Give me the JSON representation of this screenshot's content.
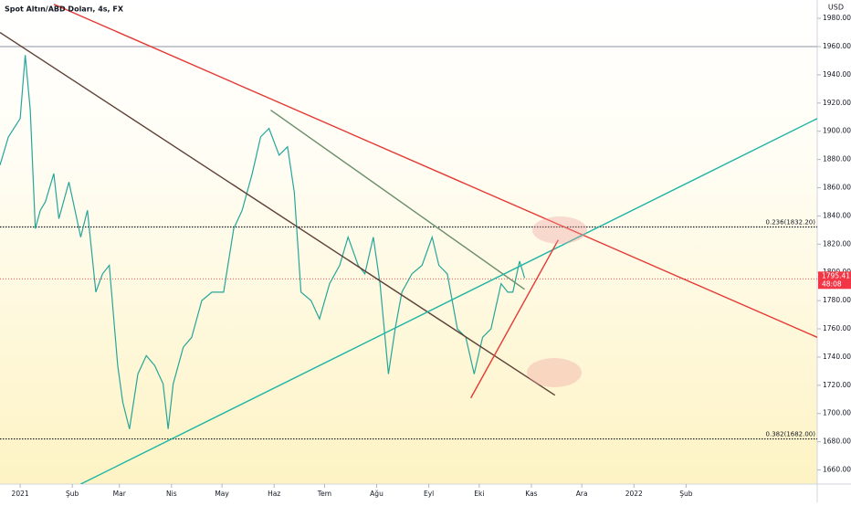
{
  "chart_data": {
    "type": "line",
    "title": "Spot Altın/ABD Doları, 4s, FX",
    "y_axis_label": "USD",
    "series": [
      {
        "name": "Spot Altın/ABD Doları",
        "color": "#26a69a",
        "x": [
          -12,
          -7,
          0,
          3,
          6,
          9,
          12,
          15,
          20,
          23,
          29,
          36,
          40,
          45,
          49,
          53,
          58,
          61,
          65,
          70,
          75,
          80,
          85,
          88,
          91,
          97,
          102,
          108,
          114,
          121,
          127,
          132,
          138,
          143,
          148,
          154,
          159,
          163,
          167,
          173,
          178,
          184,
          190,
          195,
          201,
          205,
          210,
          214,
          219,
          223,
          227,
          233,
          239,
          245,
          249,
          254,
          260,
          265,
          270,
          275,
          280,
          286,
          290,
          293,
          297,
          300
        ],
        "values": [
          1876,
          1896,
          1909,
          1954,
          1915,
          1831,
          1844,
          1850,
          1870,
          1838,
          1864,
          1825,
          1844,
          1786,
          1799,
          1805,
          1734,
          1708,
          1689,
          1728,
          1741,
          1734,
          1721,
          1689,
          1721,
          1747,
          1754,
          1780,
          1786,
          1786,
          1831,
          1844,
          1870,
          1896,
          1902,
          1883,
          1889,
          1857,
          1786,
          1780,
          1767,
          1792,
          1805,
          1825,
          1805,
          1799,
          1825,
          1792,
          1728,
          1760,
          1786,
          1799,
          1805,
          1825,
          1805,
          1799,
          1760,
          1754,
          1728,
          1754,
          1760,
          1792,
          1786,
          1786,
          1808,
          1796
        ]
      }
    ],
    "xlim": [
      -12,
      474
    ],
    "xticks": [
      {
        "value": 0,
        "label": "2021"
      },
      {
        "value": 31,
        "label": "Şub"
      },
      {
        "value": 59,
        "label": "Mar"
      },
      {
        "value": 90,
        "label": "Nis"
      },
      {
        "value": 120,
        "label": "May"
      },
      {
        "value": 151,
        "label": "Haz"
      },
      {
        "value": 181,
        "label": "Tem"
      },
      {
        "value": 212,
        "label": "Ağu"
      },
      {
        "value": 243,
        "label": "Eyl"
      },
      {
        "value": 273,
        "label": "Eki"
      },
      {
        "value": 304,
        "label": "Kas"
      },
      {
        "value": 334,
        "label": "Ara"
      },
      {
        "value": 365,
        "label": "2022"
      },
      {
        "value": 396,
        "label": "Şub"
      }
    ],
    "ylim": [
      1650,
      1993
    ],
    "yticks": [
      {
        "value": 1660,
        "label": "1660.00"
      },
      {
        "value": 1680,
        "label": "1680.00"
      },
      {
        "value": 1700,
        "label": "1700.00"
      },
      {
        "value": 1720,
        "label": "1720.00"
      },
      {
        "value": 1740,
        "label": "1740.00"
      },
      {
        "value": 1760,
        "label": "1760.00"
      },
      {
        "value": 1780,
        "label": "1780.00"
      },
      {
        "value": 1800,
        "label": "1800.00"
      },
      {
        "value": 1820,
        "label": "1820.00"
      },
      {
        "value": 1840,
        "label": "1840.00"
      },
      {
        "value": 1860,
        "label": "1860.00"
      },
      {
        "value": 1880,
        "label": "1880.00"
      },
      {
        "value": 1900,
        "label": "1900.00"
      },
      {
        "value": 1920,
        "label": "1920.00"
      },
      {
        "value": 1940,
        "label": "1940.00"
      },
      {
        "value": 1960,
        "label": "1960.00"
      },
      {
        "value": 1980,
        "label": "1980.00"
      }
    ],
    "last_price": {
      "value": 1795.41,
      "countdown": "48:08",
      "color": "#f23645"
    },
    "fib_levels": [
      {
        "value": 1832.2,
        "label": "0.236(1832.20)"
      },
      {
        "value": 1682,
        "label": "0.382(1682.00)"
      }
    ],
    "hlines": [
      {
        "value": 1960,
        "color": "#b2b5be"
      }
    ],
    "trendlines": [
      {
        "color": "#e53935",
        "x": [
          20,
          474
        ],
        "y": [
          1990,
          1754
        ]
      },
      {
        "color": "#5d4037",
        "x": [
          -12,
          318
        ],
        "y": [
          1970,
          1713
        ]
      },
      {
        "color": "#6b8e6b",
        "x": [
          149,
          300
        ],
        "y": [
          1915,
          1788
        ]
      },
      {
        "color": "#1fb5a5",
        "x": [
          36,
          474
        ],
        "y": [
          1650,
          1909
        ]
      },
      {
        "color": "#e53935",
        "x": [
          268,
          320
        ],
        "y": [
          1711,
          1823
        ]
      }
    ]
  }
}
